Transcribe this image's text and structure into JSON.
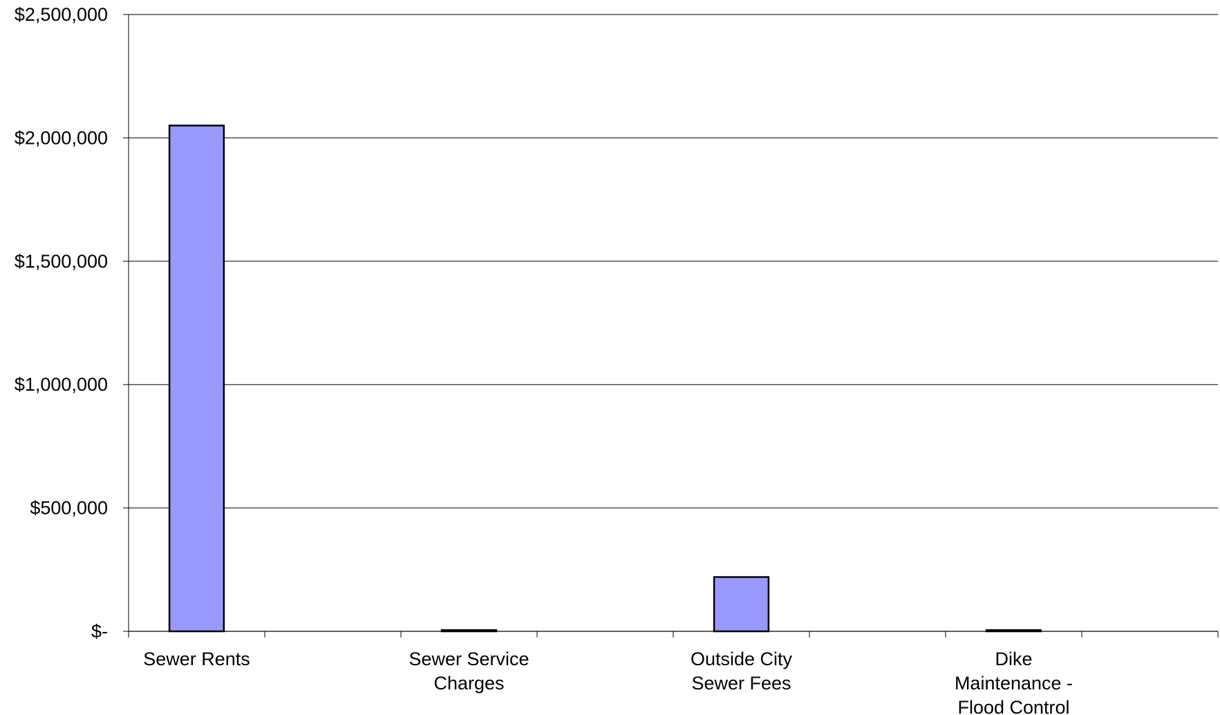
{
  "chart_data": {
    "type": "bar",
    "title": "",
    "xlabel": "",
    "ylabel": "",
    "categories": [
      "Sewer Rents",
      "Sewer Service Charges",
      "Outside City Sewer Fees",
      "Dike Maintenance - Flood Control"
    ],
    "category_label_lines": [
      [
        "Sewer Rents"
      ],
      [
        "Sewer Service",
        "Charges"
      ],
      [
        "Outside City",
        "Sewer Fees"
      ],
      [
        "Dike",
        "Maintenance -",
        "Flood Control"
      ]
    ],
    "values": [
      2050000,
      5000,
      220000,
      5000
    ],
    "ylim": [
      0,
      2500000
    ],
    "yticks": [
      0,
      500000,
      1000000,
      1500000,
      2000000,
      2500000
    ],
    "ytick_labels": [
      "$-",
      "$500,000",
      "$1,000,000",
      "$1,500,000",
      "$2,000,000",
      "$2,500,000"
    ],
    "grid": true,
    "legend": "none",
    "colors": {
      "bar_fill": "#9999ff",
      "bar_stroke": "#000000",
      "grid": "#000000",
      "axis": "#000000"
    }
  }
}
